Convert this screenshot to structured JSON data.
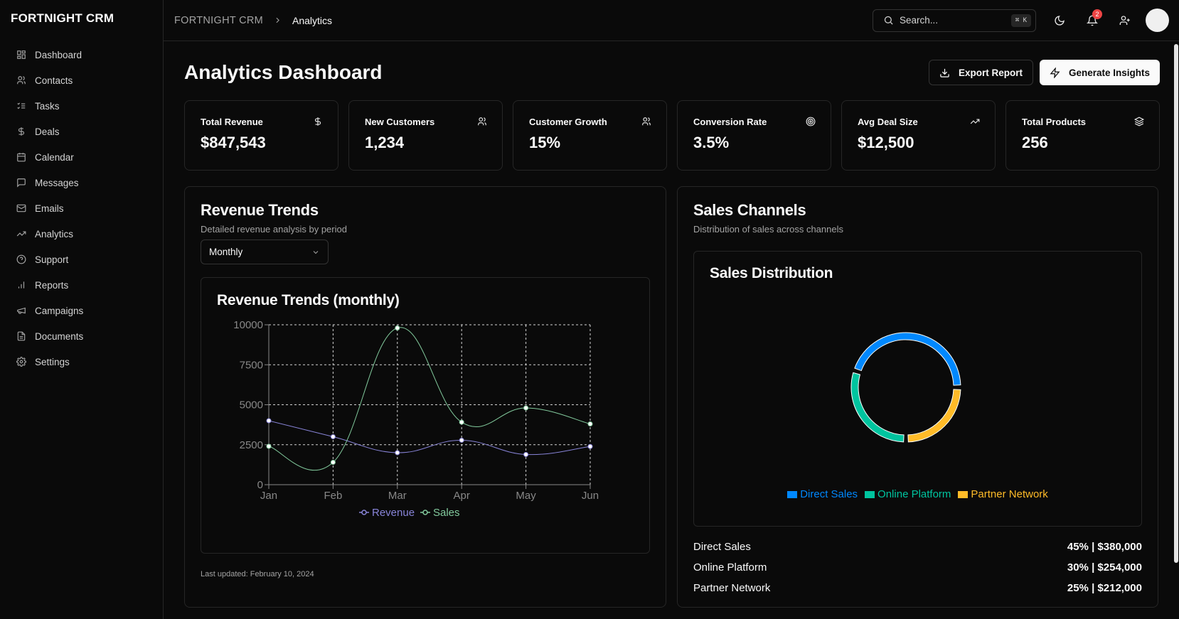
{
  "app": {
    "brand": "FORTNIGHT CRM"
  },
  "sidebar": {
    "items": [
      {
        "label": "Dashboard",
        "icon": "grid-icon"
      },
      {
        "label": "Contacts",
        "icon": "users-icon"
      },
      {
        "label": "Tasks",
        "icon": "list-check-icon"
      },
      {
        "label": "Deals",
        "icon": "dollar-icon"
      },
      {
        "label": "Calendar",
        "icon": "calendar-icon"
      },
      {
        "label": "Messages",
        "icon": "message-icon"
      },
      {
        "label": "Emails",
        "icon": "mail-icon"
      },
      {
        "label": "Analytics",
        "icon": "trending-icon"
      },
      {
        "label": "Support",
        "icon": "help-icon"
      },
      {
        "label": "Reports",
        "icon": "bar-chart-icon"
      },
      {
        "label": "Campaigns",
        "icon": "megaphone-icon"
      },
      {
        "label": "Documents",
        "icon": "file-icon"
      },
      {
        "label": "Settings",
        "icon": "gear-icon"
      }
    ]
  },
  "topbar": {
    "breadcrumb_root": "FORTNIGHT CRM",
    "breadcrumb_current": "Analytics",
    "search_placeholder": "Search...",
    "search_shortcut": "⌘ K",
    "notification_count": "2"
  },
  "page": {
    "title": "Analytics Dashboard",
    "export_label": "Export Report",
    "insights_label": "Generate Insights"
  },
  "stats": [
    {
      "label": "Total Revenue",
      "value": "$847,543",
      "icon": "dollar-icon"
    },
    {
      "label": "New Customers",
      "value": "1,234",
      "icon": "users-icon"
    },
    {
      "label": "Customer Growth",
      "value": "15%",
      "icon": "users-icon"
    },
    {
      "label": "Conversion Rate",
      "value": "3.5%",
      "icon": "target-icon"
    },
    {
      "label": "Avg Deal Size",
      "value": "$12,500",
      "icon": "trending-up-icon"
    },
    {
      "label": "Total Products",
      "value": "256",
      "icon": "layers-icon"
    }
  ],
  "revenue_panel": {
    "title": "Revenue Trends",
    "subtitle": "Detailed revenue analysis by period",
    "period_selected": "Monthly",
    "chart_title": "Revenue Trends (monthly)",
    "last_updated": "Last updated: February 10, 2024"
  },
  "channels_panel": {
    "title": "Sales Channels",
    "subtitle": "Distribution of sales across channels",
    "chart_title": "Sales Distribution",
    "breakdown": [
      {
        "label": "Direct Sales",
        "value": "45% | $380,000"
      },
      {
        "label": "Online Platform",
        "value": "30% | $254,000"
      },
      {
        "label": "Partner Network",
        "value": "25% | $212,000"
      }
    ]
  },
  "chart_data": [
    {
      "type": "line",
      "title": "Revenue Trends (monthly)",
      "categories": [
        "Jan",
        "Feb",
        "Mar",
        "Apr",
        "May",
        "Jun"
      ],
      "ylim": [
        0,
        10000
      ],
      "yticks": [
        0,
        2500,
        5000,
        7500,
        10000
      ],
      "grid": true,
      "legend_position": "bottom",
      "series": [
        {
          "name": "Revenue",
          "color": "#8884d8",
          "values": [
            4000,
            3000,
            2000,
            2780,
            1890,
            2390
          ]
        },
        {
          "name": "Sales",
          "color": "#82ca9d",
          "values": [
            2400,
            1398,
            9800,
            3908,
            4800,
            3800
          ]
        }
      ]
    },
    {
      "type": "pie",
      "title": "Sales Distribution",
      "legend_position": "bottom",
      "labels": [
        "Direct Sales",
        "Online Platform",
        "Partner Network"
      ],
      "values": [
        45,
        30,
        25
      ],
      "colors": [
        "#0088FE",
        "#00C49F",
        "#FFBB28"
      ]
    }
  ]
}
